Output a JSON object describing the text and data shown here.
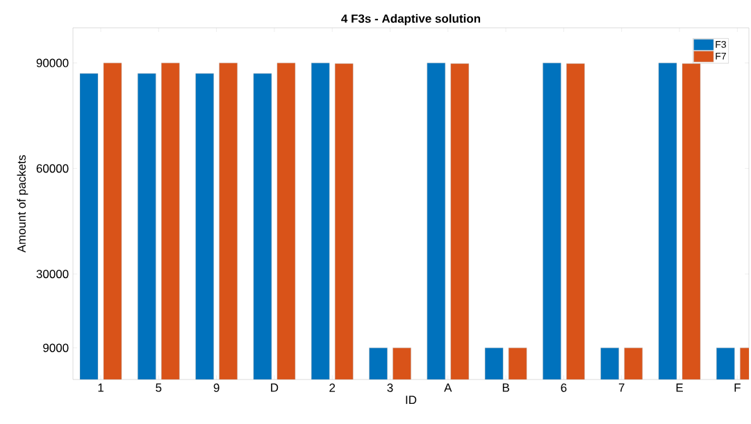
{
  "chart_data": {
    "type": "bar",
    "title": "4 F3s - Adaptive solution",
    "xlabel": "ID",
    "ylabel": "Amount of packets",
    "categories": [
      "1",
      "5",
      "9",
      "D",
      "2",
      "3",
      "A",
      "B",
      "6",
      "7",
      "E",
      "F"
    ],
    "series": [
      {
        "name": "F3",
        "color": "#0072bd",
        "values": [
          87000,
          87000,
          87000,
          87000,
          90000,
          9000,
          90000,
          9000,
          90000,
          9000,
          90000,
          9000
        ]
      },
      {
        "name": "F7",
        "color": "#d95319",
        "values": [
          90000,
          90000,
          90000,
          90000,
          89800,
          9000,
          89800,
          9000,
          89800,
          9000,
          89800,
          9000
        ]
      }
    ],
    "ylim": [
      0,
      100000
    ],
    "yticks": [
      9000,
      30000,
      60000,
      90000
    ],
    "legend": "top right",
    "grid": false
  }
}
